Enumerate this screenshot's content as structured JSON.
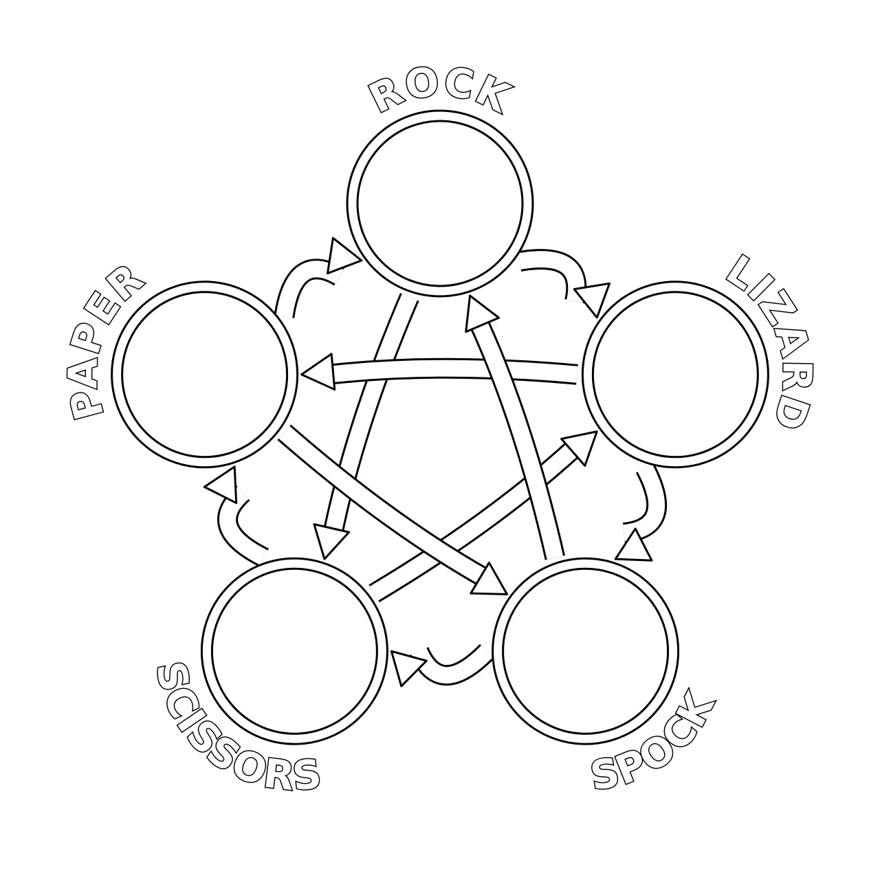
{
  "nodes": [
    {
      "id": "rock",
      "label": "ROCK"
    },
    {
      "id": "lizard",
      "label": "LIZARD"
    },
    {
      "id": "spock",
      "label": "SPOCK"
    },
    {
      "id": "scissors",
      "label": "SCISSORS"
    },
    {
      "id": "paper",
      "label": "PAPER"
    }
  ],
  "edges": [
    {
      "from": "rock",
      "to": "lizard"
    },
    {
      "from": "lizard",
      "to": "spock"
    },
    {
      "from": "spock",
      "to": "scissors"
    },
    {
      "from": "scissors",
      "to": "paper"
    },
    {
      "from": "paper",
      "to": "rock"
    },
    {
      "from": "rock",
      "to": "scissors"
    },
    {
      "from": "scissors",
      "to": "lizard"
    },
    {
      "from": "lizard",
      "to": "paper"
    },
    {
      "from": "paper",
      "to": "spock"
    },
    {
      "from": "spock",
      "to": "rock"
    }
  ]
}
